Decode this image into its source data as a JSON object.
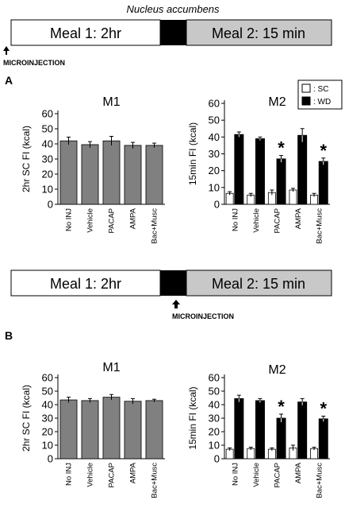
{
  "header_title": "Nucleus accumbens",
  "timelines": [
    {
      "meal1": "Meal 1: 2hr",
      "meal2": "Meal 2: 15 min",
      "injection_label": "MICROINJECTION"
    },
    {
      "meal1": "Meal 1: 2hr",
      "meal2": "Meal 2: 15 min",
      "injection_label": "MICROINJECTION"
    }
  ],
  "panel_labels": [
    "A",
    "B"
  ],
  "legend": [
    {
      "label": ": SC",
      "color": "#ffffff"
    },
    {
      "label": ": WD",
      "color": "#000000"
    }
  ],
  "colors": {
    "gray_bar": "#808080",
    "timeline_gray": "#c8c8c8",
    "black": "#000000",
    "white": "#ffffff"
  },
  "chart_data": [
    {
      "type": "bar",
      "panel": "A",
      "title": "M1",
      "ylabel": "2hr SC FI (kcal)",
      "ylim": [
        0,
        60
      ],
      "yticks": [
        0,
        10,
        20,
        30,
        40,
        50,
        60
      ],
      "categories": [
        "No INJ",
        "Vehicle",
        "PACAP",
        "AMPA",
        "Bac+Musc"
      ],
      "series": [
        {
          "values": [
            42,
            39.5,
            42,
            39,
            39
          ],
          "errors": [
            2.5,
            2,
            3,
            2,
            1.5
          ],
          "color": "#808080"
        }
      ],
      "significant": [
        false,
        false,
        false,
        false,
        false
      ]
    },
    {
      "type": "bar",
      "panel": "A",
      "title": "M2",
      "ylabel": "15min  FI (kcal)",
      "ylim": [
        0,
        60
      ],
      "yticks": [
        0,
        10,
        20,
        30,
        40,
        50,
        60
      ],
      "categories": [
        "No INJ",
        "Vehicle",
        "PACAP",
        "AMPA",
        "Bac+Musc"
      ],
      "series": [
        {
          "name": "SC",
          "values": [
            6.5,
            5.5,
            7,
            8.5,
            5.5
          ],
          "errors": [
            1,
            1,
            1.5,
            1,
            1
          ],
          "color": "#ffffff"
        },
        {
          "name": "WD",
          "values": [
            41.5,
            39,
            27,
            41,
            25.5
          ],
          "errors": [
            1.5,
            1,
            2,
            4,
            2
          ],
          "color": "#000000"
        }
      ],
      "significant": [
        false,
        false,
        true,
        false,
        true
      ]
    },
    {
      "type": "bar",
      "panel": "B",
      "title": "M1",
      "ylabel": "2hr SC FI (kcal)",
      "ylim": [
        0,
        60
      ],
      "yticks": [
        0,
        10,
        20,
        30,
        40,
        50,
        60
      ],
      "categories": [
        "No INJ",
        "Vehicle",
        "PACAP",
        "AMPA",
        "Bac+Musc"
      ],
      "series": [
        {
          "values": [
            43.5,
            43,
            45.5,
            42.5,
            43
          ],
          "errors": [
            2,
            1.5,
            2,
            2,
            1
          ],
          "color": "#808080"
        }
      ],
      "significant": [
        false,
        false,
        false,
        false,
        false
      ]
    },
    {
      "type": "bar",
      "panel": "B",
      "title": "M2",
      "ylabel": "15min  FI (kcal)",
      "ylim": [
        0,
        60
      ],
      "yticks": [
        0,
        10,
        20,
        30,
        40,
        50,
        60
      ],
      "categories": [
        "No INJ",
        "Vehicle",
        "PACAP",
        "AMPA",
        "Bac+Musc"
      ],
      "series": [
        {
          "name": "SC",
          "values": [
            7,
            7.5,
            7,
            8,
            7.5
          ],
          "errors": [
            1,
            1,
            1,
            2,
            1
          ],
          "color": "#ffffff"
        },
        {
          "name": "WD",
          "values": [
            44.5,
            43,
            30,
            42,
            29.5
          ],
          "errors": [
            2.5,
            1.5,
            3,
            2.5,
            2
          ],
          "color": "#000000"
        }
      ],
      "significant": [
        false,
        false,
        true,
        false,
        true
      ]
    }
  ]
}
